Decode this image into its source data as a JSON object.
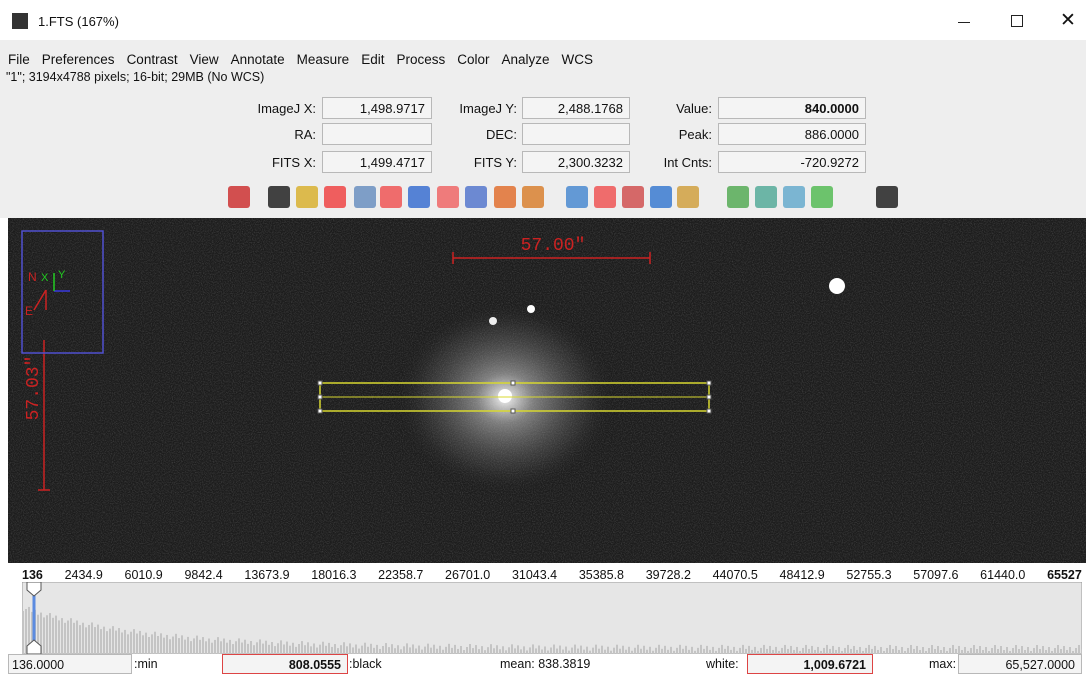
{
  "window": {
    "title": "1.FTS (167%)"
  },
  "menu": [
    "File",
    "Preferences",
    "Contrast",
    "View",
    "Annotate",
    "Measure",
    "Edit",
    "Process",
    "Color",
    "Analyze",
    "WCS"
  ],
  "info": "\"1\"; 3194x4788 pixels; 16-bit; 29MB (No WCS)",
  "readout": [
    {
      "label": "ImageJ X:",
      "value": "1,498.9717"
    },
    {
      "label": "ImageJ Y:",
      "value": "2,488.1768"
    },
    {
      "label": "Value:",
      "value": "840.0000"
    },
    {
      "label": "RA:",
      "value": ""
    },
    {
      "label": "DEC:",
      "value": ""
    },
    {
      "label": "Peak:",
      "value": "886.0000"
    },
    {
      "label": "FITS X:",
      "value": "1,499.4717"
    },
    {
      "label": "FITS Y:",
      "value": "2,300.3232"
    },
    {
      "label": "Int Cnts:",
      "value": "-720.9272"
    }
  ],
  "image": {
    "scale_x": "57.00\"",
    "scale_y": "57.03\"",
    "north": "N",
    "east": "E",
    "axis_x": "X",
    "axis_y": "Y"
  },
  "histogram_scale": [
    "136",
    "2434.9",
    "6010.9",
    "9842.4",
    "13673.9",
    "18016.3",
    "22358.7",
    "26701.0",
    "31043.4",
    "35385.8",
    "39728.2",
    "44070.5",
    "48412.9",
    "52755.3",
    "57097.6",
    "61440.0",
    "65527"
  ],
  "bottom": {
    "min_value": "136.0000",
    "min_label": ":min",
    "black_value": "808.0555",
    "black_label": ":black",
    "mean": "mean: 838.3819",
    "white_label": "white:",
    "white_value": "1,009.6721",
    "max_label": "max:",
    "max_value": "65,527.0000"
  }
}
